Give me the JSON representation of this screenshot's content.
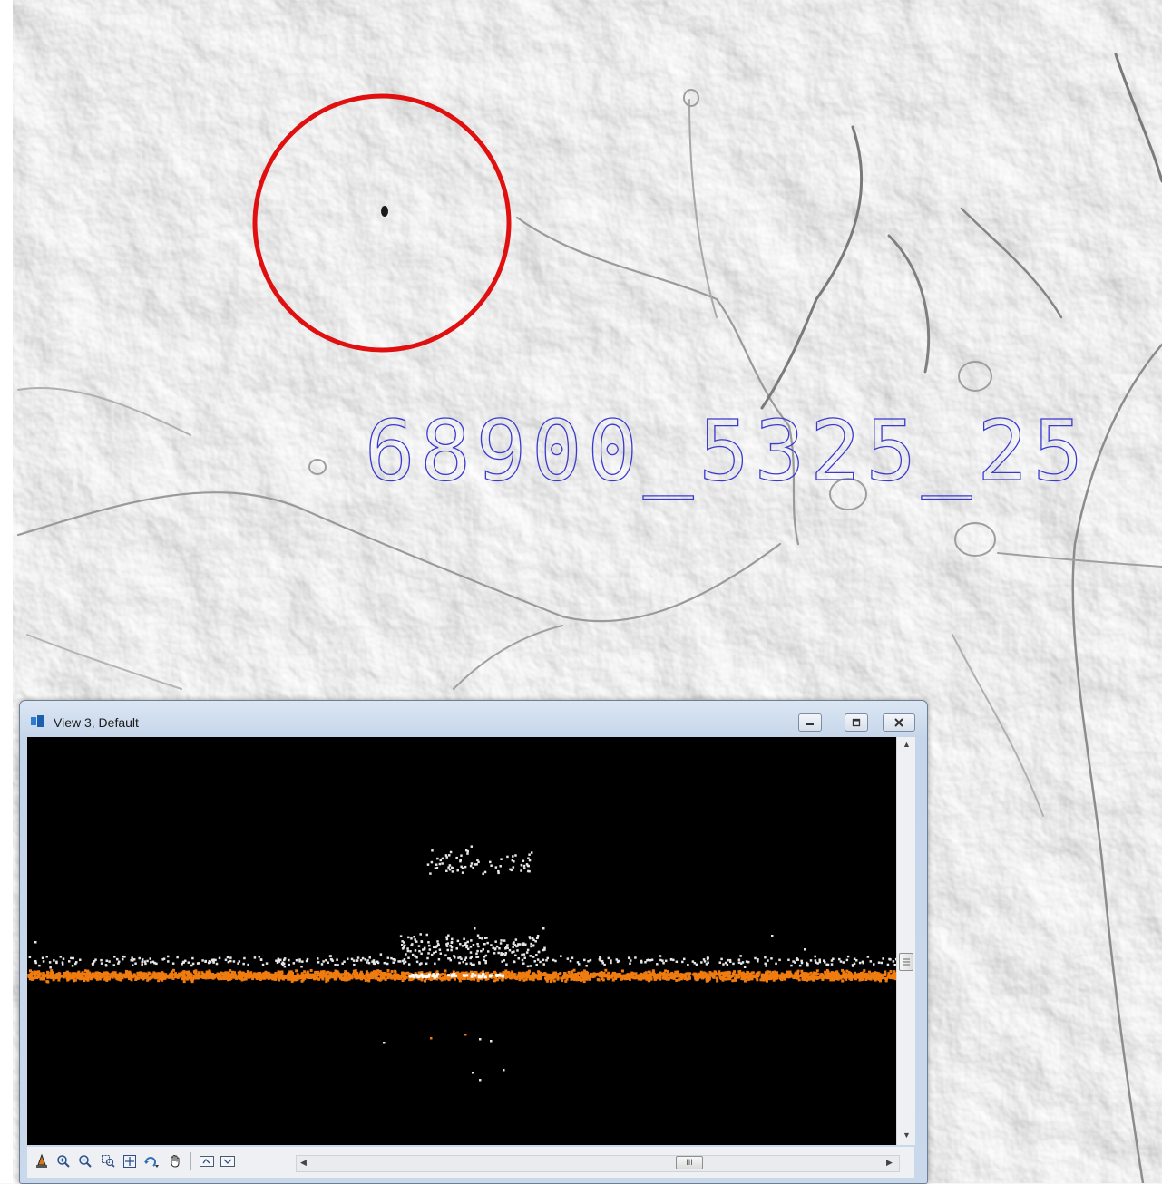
{
  "map": {
    "tile_label": "68900_5325_25",
    "highlight_color": "#e01010",
    "label_color": "#3a3ad0"
  },
  "window": {
    "title": "View 3, Default",
    "controls": [
      "minimize-icon",
      "restore-icon",
      "close-icon"
    ],
    "point_colors": {
      "ground": "#f07c10",
      "other": "#e6e6e6",
      "background": "#000000"
    },
    "toolbar_tools": [
      "place-fence-icon",
      "zoom-in-icon",
      "zoom-out-icon",
      "window-area-icon",
      "fit-view-icon",
      "rotate-view-icon",
      "pan-view-icon",
      "previous-view-icon",
      "next-view-icon"
    ],
    "hscroll_thumb_glyph": "III"
  }
}
